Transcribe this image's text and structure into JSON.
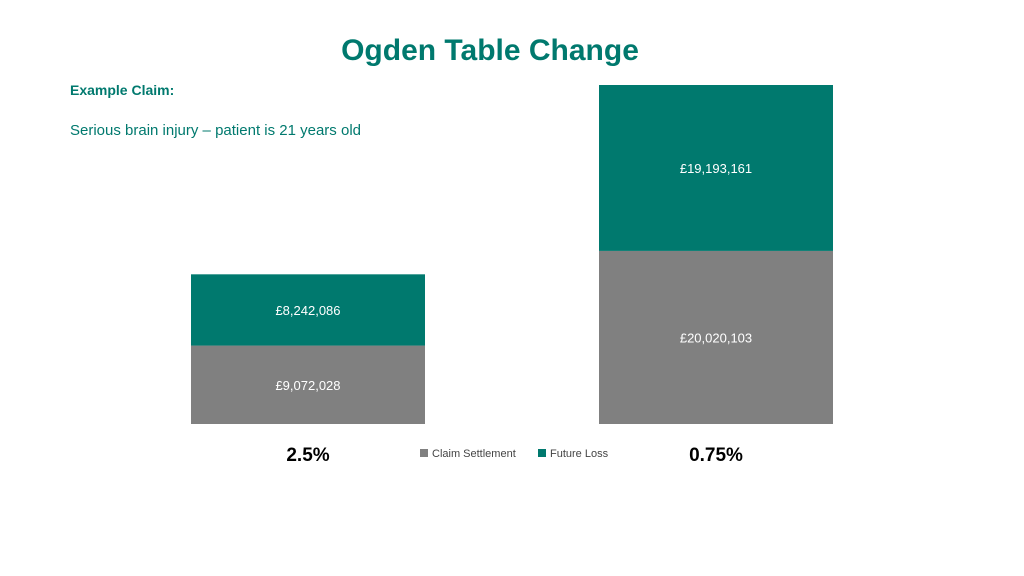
{
  "title": "Ogden Table Change",
  "claim": {
    "heading": "Example Claim:",
    "description": "Serious brain injury – patient is 21 years old"
  },
  "colors": {
    "claim_settlement": "#808080",
    "future_loss": "#00796e",
    "accent": "#00796e"
  },
  "chart_data": {
    "type": "bar",
    "stacked": true,
    "categories": [
      "2.5%",
      "0.75%"
    ],
    "series": [
      {
        "name": "Claim Settlement",
        "values": [
          9072028,
          20020103
        ],
        "labels": [
          "£9,072,028",
          "£20,020,103"
        ]
      },
      {
        "name": "Future Loss",
        "values": [
          8242086,
          19193161
        ],
        "labels": [
          "£8,242,086",
          "£19,193,161"
        ]
      }
    ],
    "ylim": [
      0,
      39213264
    ],
    "grid": false,
    "legend": "bottom-center"
  }
}
